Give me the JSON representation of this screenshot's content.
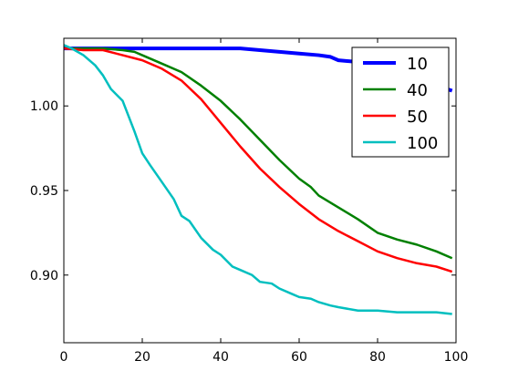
{
  "chart_data": {
    "type": "line",
    "xlim": [
      0,
      100
    ],
    "ylim": [
      0.86,
      1.04
    ],
    "xticks": [
      0,
      20,
      40,
      60,
      80,
      100
    ],
    "yticks": [
      0.9,
      0.95,
      1.0
    ],
    "grid": false,
    "legend_position": "top-right",
    "series": [
      {
        "name": "10",
        "color": "#0000ff",
        "points": [
          [
            0,
            1.034
          ],
          [
            10,
            1.034
          ],
          [
            20,
            1.034
          ],
          [
            30,
            1.034
          ],
          [
            40,
            1.034
          ],
          [
            45,
            1.034
          ],
          [
            50,
            1.033
          ],
          [
            55,
            1.032
          ],
          [
            60,
            1.031
          ],
          [
            65,
            1.03
          ],
          [
            68,
            1.029
          ],
          [
            70,
            1.027
          ],
          [
            75,
            1.026
          ],
          [
            80,
            1.024
          ],
          [
            85,
            1.02
          ],
          [
            90,
            1.016
          ],
          [
            95,
            1.012
          ],
          [
            99,
            1.009
          ]
        ]
      },
      {
        "name": "40",
        "color": "#008000",
        "points": [
          [
            0,
            1.034
          ],
          [
            5,
            1.034
          ],
          [
            10,
            1.034
          ],
          [
            15,
            1.033
          ],
          [
            18,
            1.032
          ],
          [
            20,
            1.03
          ],
          [
            25,
            1.025
          ],
          [
            30,
            1.02
          ],
          [
            35,
            1.012
          ],
          [
            40,
            1.003
          ],
          [
            45,
            0.992
          ],
          [
            50,
            0.98
          ],
          [
            55,
            0.968
          ],
          [
            60,
            0.957
          ],
          [
            63,
            0.952
          ],
          [
            65,
            0.947
          ],
          [
            70,
            0.94
          ],
          [
            75,
            0.933
          ],
          [
            80,
            0.925
          ],
          [
            85,
            0.921
          ],
          [
            90,
            0.918
          ],
          [
            95,
            0.914
          ],
          [
            99,
            0.91
          ]
        ]
      },
      {
        "name": "50",
        "color": "#ff0000",
        "points": [
          [
            0,
            1.034
          ],
          [
            5,
            1.033
          ],
          [
            10,
            1.033
          ],
          [
            15,
            1.03
          ],
          [
            20,
            1.027
          ],
          [
            25,
            1.022
          ],
          [
            30,
            1.015
          ],
          [
            35,
            1.004
          ],
          [
            40,
            0.99
          ],
          [
            45,
            0.976
          ],
          [
            50,
            0.963
          ],
          [
            55,
            0.952
          ],
          [
            60,
            0.942
          ],
          [
            65,
            0.933
          ],
          [
            70,
            0.926
          ],
          [
            75,
            0.92
          ],
          [
            80,
            0.914
          ],
          [
            85,
            0.91
          ],
          [
            90,
            0.907
          ],
          [
            95,
            0.905
          ],
          [
            99,
            0.902
          ]
        ]
      },
      {
        "name": "100",
        "color": "#00bfbf",
        "points": [
          [
            0,
            1.036
          ],
          [
            2,
            1.034
          ],
          [
            5,
            1.03
          ],
          [
            8,
            1.024
          ],
          [
            10,
            1.018
          ],
          [
            12,
            1.01
          ],
          [
            15,
            1.003
          ],
          [
            18,
            0.985
          ],
          [
            20,
            0.972
          ],
          [
            22,
            0.965
          ],
          [
            25,
            0.955
          ],
          [
            28,
            0.945
          ],
          [
            30,
            0.935
          ],
          [
            32,
            0.932
          ],
          [
            35,
            0.922
          ],
          [
            38,
            0.915
          ],
          [
            40,
            0.912
          ],
          [
            43,
            0.905
          ],
          [
            45,
            0.903
          ],
          [
            48,
            0.9
          ],
          [
            50,
            0.896
          ],
          [
            53,
            0.895
          ],
          [
            55,
            0.892
          ],
          [
            58,
            0.889
          ],
          [
            60,
            0.887
          ],
          [
            63,
            0.886
          ],
          [
            65,
            0.884
          ],
          [
            68,
            0.882
          ],
          [
            70,
            0.881
          ],
          [
            75,
            0.879
          ],
          [
            80,
            0.879
          ],
          [
            85,
            0.878
          ],
          [
            90,
            0.878
          ],
          [
            95,
            0.878
          ],
          [
            99,
            0.877
          ]
        ]
      }
    ]
  }
}
